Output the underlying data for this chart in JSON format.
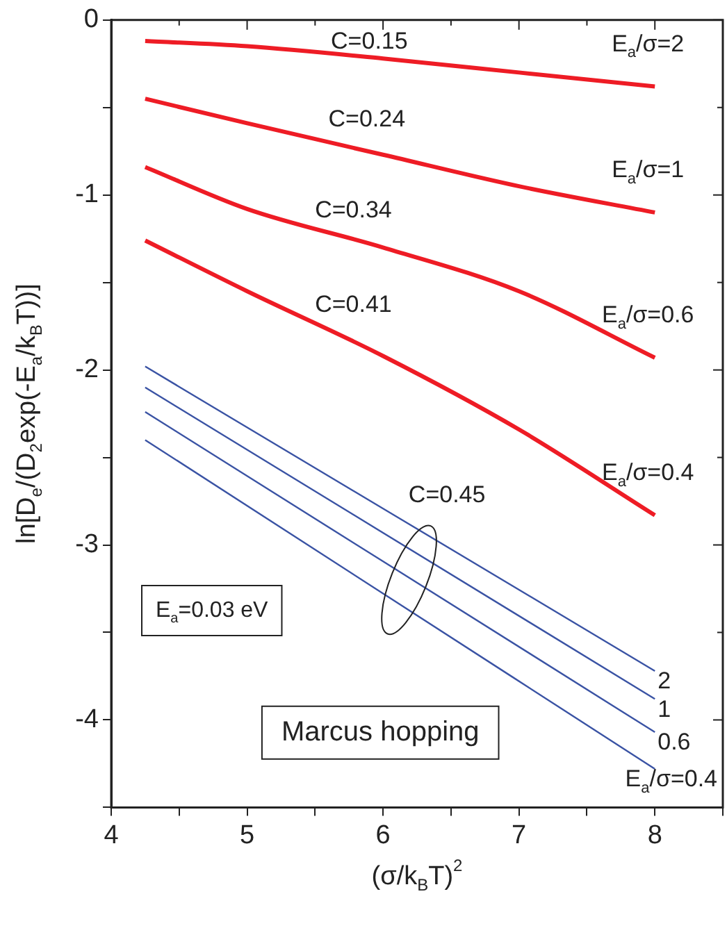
{
  "chart_data": {
    "type": "line",
    "xlabel": "(σ/k$_{B}$T)$^{2}$",
    "ylabel": "ln[D$_{e}$/(D$_{2}$exp(-E$_{a}$/k$_{B}$T))]",
    "xlim": [
      4,
      8.5
    ],
    "xticks": [
      4,
      {
        "value": 4.5,
        "label": null
      },
      5,
      {
        "value": 5.5,
        "label": null
      },
      6,
      {
        "value": 6.5,
        "label": null
      },
      7,
      {
        "value": 7.5,
        "label": null
      },
      8,
      {
        "value": 8.5,
        "label": null
      }
    ],
    "ylim": [
      -4.5,
      0
    ],
    "yticks": [
      {
        "value": -4.5,
        "label": null
      },
      -4,
      {
        "value": -3.5,
        "label": null
      },
      -3,
      {
        "value": -2.5,
        "label": null
      },
      -2,
      {
        "value": -1.5,
        "label": null
      },
      -1,
      {
        "value": -0.5,
        "label": null
      },
      0
    ],
    "marker": "none",
    "line_style": "solid",
    "series": [
      {
        "name": "E$_{a}$/σ=2",
        "color": "#ee1c25",
        "x": [
          4.25,
          5,
          6,
          7,
          8
        ],
        "values": [
          -0.12,
          -0.15,
          -0.22,
          -0.3,
          -0.38
        ]
      },
      {
        "name": "E$_{a}$/σ=1",
        "color": "#ee1c25",
        "x": [
          4.25,
          5,
          6,
          7,
          8
        ],
        "values": [
          -0.45,
          -0.59,
          -0.77,
          -0.95,
          -1.1
        ]
      },
      {
        "name": "E$_{a}$/σ=0.6",
        "color": "#ee1c25",
        "x": [
          4.25,
          5,
          6,
          7,
          8
        ],
        "values": [
          -0.84,
          -1.08,
          -1.3,
          -1.55,
          -1.93
        ]
      },
      {
        "name": "E$_{a}$/σ=0.4",
        "color": "#ee1c25",
        "x": [
          4.25,
          5,
          6,
          7,
          8
        ],
        "values": [
          -1.26,
          -1.55,
          -1.92,
          -2.34,
          -2.83
        ]
      },
      {
        "name": "2",
        "color": "#3a53a4",
        "x": [
          4.25,
          8
        ],
        "values": [
          -1.98,
          -3.72
        ]
      },
      {
        "name": "1",
        "color": "#3a53a4",
        "x": [
          4.25,
          8
        ],
        "values": [
          -2.1,
          -3.88
        ]
      },
      {
        "name": "0.6",
        "color": "#3a53a4",
        "x": [
          4.25,
          8
        ],
        "values": [
          -2.24,
          -4.07
        ]
      },
      {
        "name": "E$_{a}$/σ=0.4",
        "color": "#3a53a4",
        "x": [
          4.25,
          8
        ],
        "values": [
          -2.4,
          -4.28
        ]
      }
    ],
    "annotations": [
      "C=0.15",
      "C=0.24",
      "C=0.34",
      "C=0.41",
      "C=0.45",
      "E$_{a}$=0.03 eV",
      "Marcus hopping"
    ]
  }
}
